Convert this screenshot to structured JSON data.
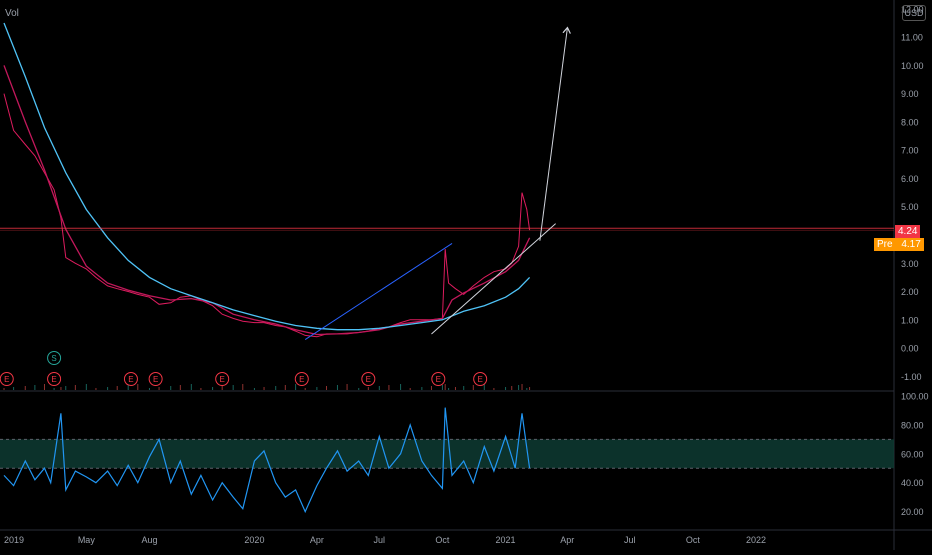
{
  "header": {
    "volume_label": "Vol",
    "currency": "USD"
  },
  "price_tags": {
    "last": {
      "value": "4.24",
      "color": "#f23645"
    },
    "premarket": {
      "label": "Pre",
      "value": "4.17",
      "color": "#ff9800"
    }
  },
  "colors": {
    "background": "#000000",
    "price_line": "#e91e63",
    "ma_line": "#4fc3f7",
    "rsi_line": "#2196f3",
    "rsi_band": "#0e3b33",
    "earnings_marker": "#f23645",
    "split_marker": "#26a69a",
    "arrow": "#d1d4dc",
    "trendline": "#d1d4dc",
    "channel": "#2962ff"
  },
  "chart_data": [
    {
      "type": "line",
      "title": "",
      "xlabel": "",
      "ylabel": "",
      "x_ticks": [
        "2019",
        "May",
        "Aug",
        "2020",
        "Apr",
        "Jul",
        "Oct",
        "2021",
        "Apr",
        "Jul",
        "Oct",
        "2022"
      ],
      "y_ticks": [
        "-1.00",
        "0.00",
        "1.00",
        "2.00",
        "3.00",
        "4.00",
        "5.00",
        "6.00",
        "7.00",
        "8.00",
        "9.00",
        "10.00",
        "11.00",
        "12.00"
      ],
      "ylim": [
        -1.2,
        12.1
      ],
      "series": [
        {
          "name": "",
          "style": "price",
          "points": [
            [
              "2019-01-01",
              9.0
            ],
            [
              "2019-01-15",
              7.7
            ],
            [
              "2019-02-01",
              7.2
            ],
            [
              "2019-02-15",
              6.8
            ],
            [
              "2019-03-01",
              6.2
            ],
            [
              "2019-03-15",
              5.6
            ],
            [
              "2019-03-25",
              4.6
            ],
            [
              "2019-04-01",
              3.2
            ],
            [
              "2019-04-15",
              3.0
            ],
            [
              "2019-05-01",
              2.8
            ],
            [
              "2019-05-15",
              2.5
            ],
            [
              "2019-06-01",
              2.2
            ],
            [
              "2019-06-15",
              2.1
            ],
            [
              "2019-07-01",
              2.0
            ],
            [
              "2019-07-15",
              1.9
            ],
            [
              "2019-08-01",
              1.8
            ],
            [
              "2019-08-15",
              1.55
            ],
            [
              "2019-09-01",
              1.6
            ],
            [
              "2019-09-15",
              1.8
            ],
            [
              "2019-10-01",
              1.85
            ],
            [
              "2019-10-15",
              1.7
            ],
            [
              "2019-11-01",
              1.5
            ],
            [
              "2019-11-15",
              1.2
            ],
            [
              "2019-12-01",
              1.05
            ],
            [
              "2019-12-15",
              0.95
            ],
            [
              "2020-01-01",
              0.9
            ],
            [
              "2020-01-15",
              0.9
            ],
            [
              "2020-02-01",
              0.8
            ],
            [
              "2020-02-15",
              0.75
            ],
            [
              "2020-03-01",
              0.6
            ],
            [
              "2020-03-15",
              0.45
            ],
            [
              "2020-04-01",
              0.4
            ],
            [
              "2020-04-15",
              0.5
            ],
            [
              "2020-05-01",
              0.5
            ],
            [
              "2020-05-15",
              0.5
            ],
            [
              "2020-06-01",
              0.55
            ],
            [
              "2020-06-15",
              0.6
            ],
            [
              "2020-07-01",
              0.7
            ],
            [
              "2020-07-15",
              0.75
            ],
            [
              "2020-08-01",
              0.9
            ],
            [
              "2020-08-15",
              1.0
            ],
            [
              "2020-09-01",
              1.0
            ],
            [
              "2020-09-15",
              1.0
            ],
            [
              "2020-10-01",
              1.05
            ],
            [
              "2020-10-05",
              3.5
            ],
            [
              "2020-10-10",
              2.3
            ],
            [
              "2020-10-20",
              2.1
            ],
            [
              "2020-11-01",
              1.9
            ],
            [
              "2020-11-15",
              2.2
            ],
            [
              "2020-12-01",
              2.5
            ],
            [
              "2020-12-15",
              2.7
            ],
            [
              "2021-01-01",
              2.8
            ],
            [
              "2021-01-10",
              3.0
            ],
            [
              "2021-01-20",
              3.6
            ],
            [
              "2021-01-25",
              5.5
            ],
            [
              "2021-02-01",
              4.9
            ],
            [
              "2021-02-05",
              4.17
            ]
          ]
        },
        {
          "name": "",
          "style": "ma_red",
          "points": [
            [
              "2019-01-01",
              10.0
            ],
            [
              "2019-02-01",
              8.0
            ],
            [
              "2019-03-01",
              6.3
            ],
            [
              "2019-04-01",
              4.2
            ],
            [
              "2019-05-01",
              2.9
            ],
            [
              "2019-06-01",
              2.3
            ],
            [
              "2019-07-01",
              2.05
            ],
            [
              "2019-08-01",
              1.85
            ],
            [
              "2019-09-01",
              1.7
            ],
            [
              "2019-10-01",
              1.75
            ],
            [
              "2019-11-01",
              1.6
            ],
            [
              "2019-12-01",
              1.2
            ],
            [
              "2020-01-01",
              1.0
            ],
            [
              "2020-02-01",
              0.85
            ],
            [
              "2020-03-01",
              0.65
            ],
            [
              "2020-04-01",
              0.48
            ],
            [
              "2020-05-01",
              0.5
            ],
            [
              "2020-06-01",
              0.55
            ],
            [
              "2020-07-01",
              0.65
            ],
            [
              "2020-08-01",
              0.85
            ],
            [
              "2020-09-01",
              0.95
            ],
            [
              "2020-10-01",
              1.05
            ],
            [
              "2020-10-15",
              1.7
            ],
            [
              "2020-11-01",
              1.95
            ],
            [
              "2020-12-01",
              2.3
            ],
            [
              "2021-01-01",
              2.7
            ],
            [
              "2021-01-20",
              3.1
            ],
            [
              "2021-02-05",
              3.9
            ]
          ]
        },
        {
          "name": "",
          "style": "ma_blue",
          "points": [
            [
              "2019-01-01",
              11.5
            ],
            [
              "2019-02-01",
              9.6
            ],
            [
              "2019-03-01",
              7.8
            ],
            [
              "2019-04-01",
              6.2
            ],
            [
              "2019-05-01",
              4.9
            ],
            [
              "2019-06-01",
              3.9
            ],
            [
              "2019-07-01",
              3.1
            ],
            [
              "2019-08-01",
              2.5
            ],
            [
              "2019-09-01",
              2.1
            ],
            [
              "2019-10-01",
              1.85
            ],
            [
              "2019-11-01",
              1.6
            ],
            [
              "2019-12-01",
              1.35
            ],
            [
              "2020-01-01",
              1.15
            ],
            [
              "2020-02-01",
              0.95
            ],
            [
              "2020-03-01",
              0.8
            ],
            [
              "2020-04-01",
              0.7
            ],
            [
              "2020-05-01",
              0.65
            ],
            [
              "2020-06-01",
              0.65
            ],
            [
              "2020-07-01",
              0.7
            ],
            [
              "2020-08-01",
              0.8
            ],
            [
              "2020-09-01",
              0.9
            ],
            [
              "2020-10-01",
              1.0
            ],
            [
              "2020-11-01",
              1.3
            ],
            [
              "2020-12-01",
              1.5
            ],
            [
              "2021-01-01",
              1.8
            ],
            [
              "2021-01-20",
              2.1
            ],
            [
              "2021-02-05",
              2.5
            ]
          ]
        }
      ],
      "annotations": {
        "horizontal_line": 4.24,
        "earnings_markers": [
          {
            "label": "E",
            "date": "2019-01-05"
          },
          {
            "label": "E",
            "date": "2019-03-15"
          },
          {
            "label": "E",
            "date": "2019-07-05"
          },
          {
            "label": "E",
            "date": "2019-08-10"
          },
          {
            "label": "E",
            "date": "2019-11-15"
          },
          {
            "label": "E",
            "date": "2020-03-10"
          },
          {
            "label": "E",
            "date": "2020-06-15"
          },
          {
            "label": "E",
            "date": "2020-09-25"
          },
          {
            "label": "E",
            "date": "2020-11-25"
          }
        ],
        "split_marker": {
          "label": "S",
          "date": "2019-03-15"
        },
        "arrow": {
          "from": [
            "2021-02-20",
            3.8
          ],
          "to": [
            "2021-04-01",
            11.3
          ]
        },
        "trendline": {
          "from": [
            "2020-09-15",
            0.5
          ],
          "to": [
            "2021-03-15",
            4.4
          ]
        },
        "channel_line": {
          "from": [
            "2020-03-15",
            0.3
          ],
          "to": [
            "2020-10-15",
            3.7
          ]
        }
      }
    },
    {
      "type": "line",
      "title": "",
      "xlabel": "",
      "ylabel": "",
      "y_ticks": [
        "20.00",
        "40.00",
        "60.00",
        "80.00",
        "100.00"
      ],
      "ylim": [
        10,
        100
      ],
      "band": [
        50,
        70
      ],
      "series": [
        {
          "name": "",
          "style": "rsi",
          "points": [
            [
              "2019-01-01",
              45
            ],
            [
              "2019-01-15",
              38
            ],
            [
              "2019-02-01",
              55
            ],
            [
              "2019-02-15",
              42
            ],
            [
              "2019-03-01",
              50
            ],
            [
              "2019-03-10",
              40
            ],
            [
              "2019-03-25",
              88
            ],
            [
              "2019-04-01",
              35
            ],
            [
              "2019-04-15",
              48
            ],
            [
              "2019-05-01",
              44
            ],
            [
              "2019-05-15",
              40
            ],
            [
              "2019-06-01",
              48
            ],
            [
              "2019-06-15",
              38
            ],
            [
              "2019-07-01",
              52
            ],
            [
              "2019-07-15",
              40
            ],
            [
              "2019-08-01",
              58
            ],
            [
              "2019-08-15",
              70
            ],
            [
              "2019-09-01",
              40
            ],
            [
              "2019-09-15",
              55
            ],
            [
              "2019-10-01",
              32
            ],
            [
              "2019-10-15",
              45
            ],
            [
              "2019-11-01",
              28
            ],
            [
              "2019-11-15",
              40
            ],
            [
              "2019-12-01",
              30
            ],
            [
              "2019-12-15",
              22
            ],
            [
              "2020-01-01",
              55
            ],
            [
              "2020-01-15",
              62
            ],
            [
              "2020-02-01",
              40
            ],
            [
              "2020-02-15",
              30
            ],
            [
              "2020-03-01",
              35
            ],
            [
              "2020-03-15",
              20
            ],
            [
              "2020-04-01",
              38
            ],
            [
              "2020-04-15",
              50
            ],
            [
              "2020-05-01",
              62
            ],
            [
              "2020-05-15",
              48
            ],
            [
              "2020-06-01",
              55
            ],
            [
              "2020-06-15",
              45
            ],
            [
              "2020-07-01",
              72
            ],
            [
              "2020-07-15",
              50
            ],
            [
              "2020-08-01",
              60
            ],
            [
              "2020-08-15",
              80
            ],
            [
              "2020-09-01",
              55
            ],
            [
              "2020-09-15",
              45
            ],
            [
              "2020-10-01",
              36
            ],
            [
              "2020-10-05",
              92
            ],
            [
              "2020-10-15",
              45
            ],
            [
              "2020-11-01",
              55
            ],
            [
              "2020-11-15",
              40
            ],
            [
              "2020-12-01",
              65
            ],
            [
              "2020-12-15",
              48
            ],
            [
              "2021-01-01",
              72
            ],
            [
              "2021-01-15",
              50
            ],
            [
              "2021-01-25",
              88
            ],
            [
              "2021-02-05",
              50
            ]
          ]
        }
      ]
    }
  ]
}
